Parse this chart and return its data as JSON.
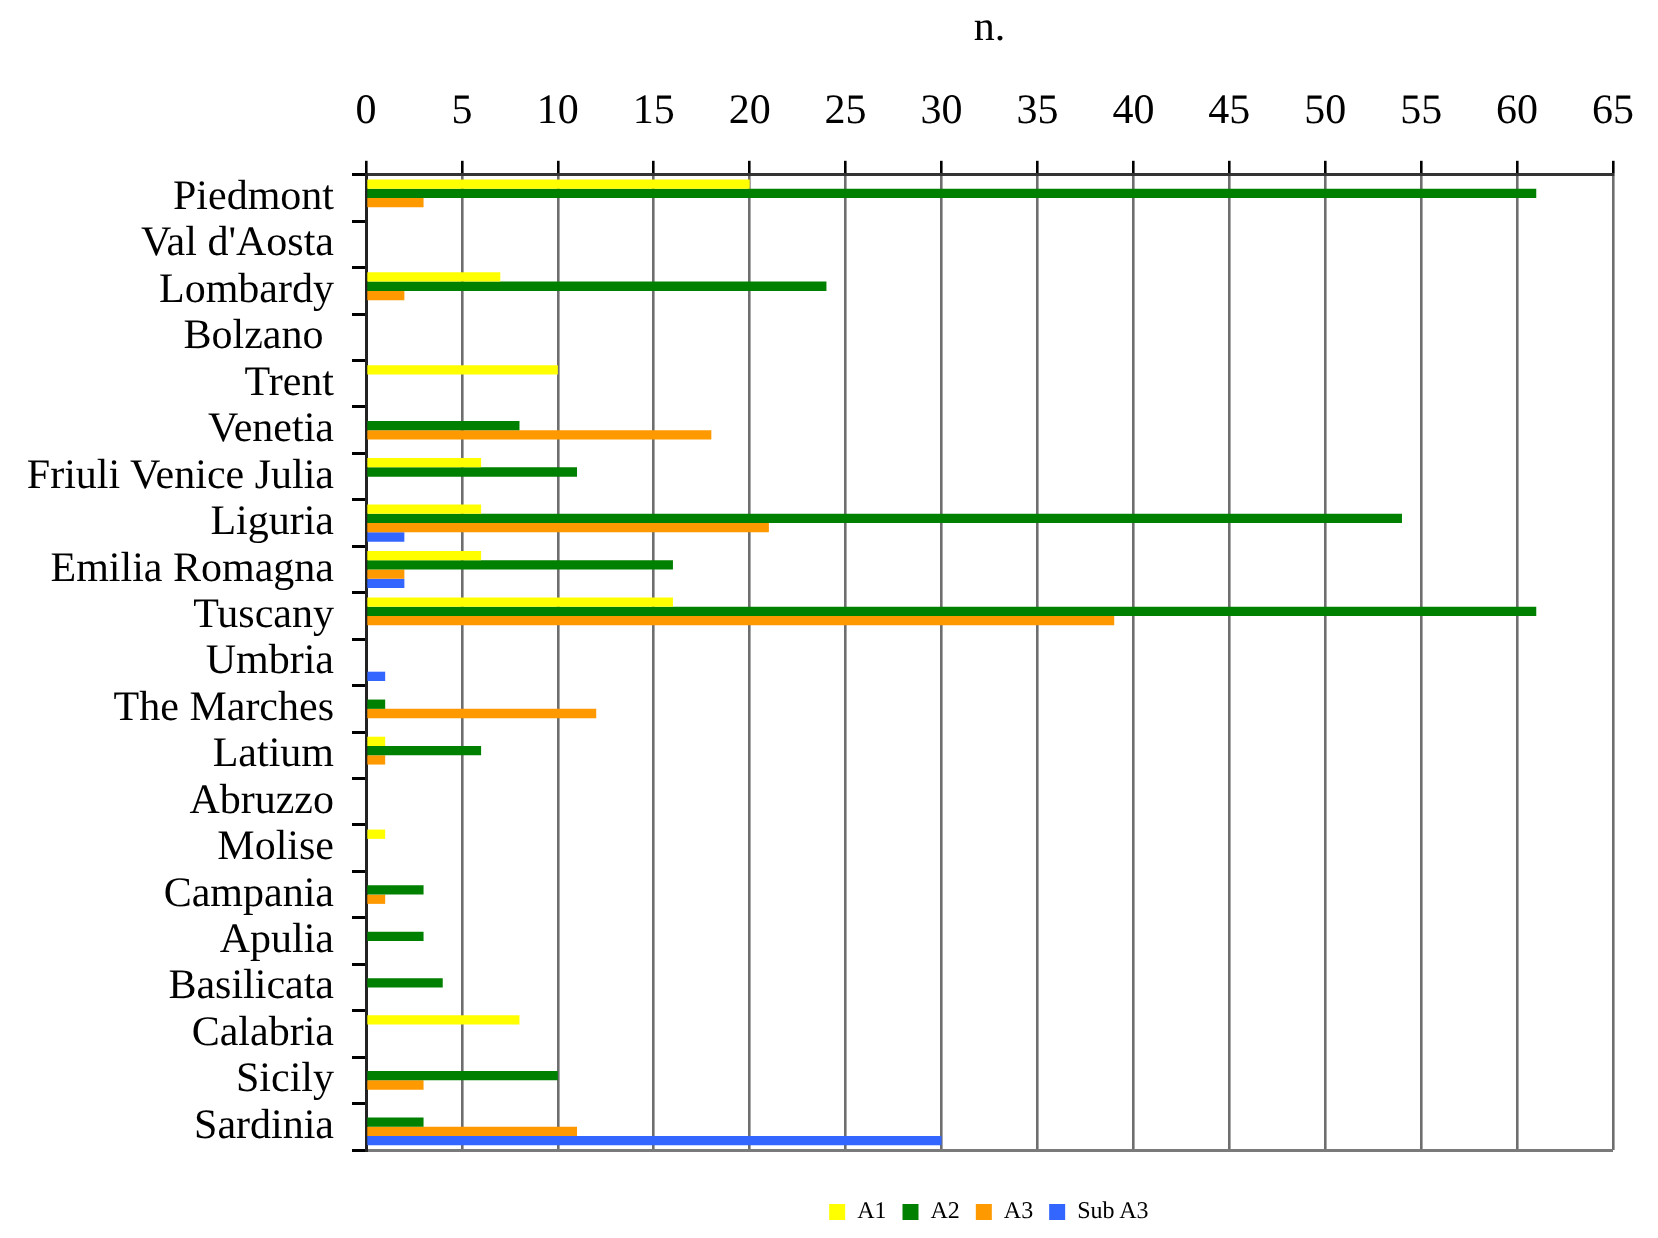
{
  "chart_data": {
    "type": "bar",
    "orientation": "horizontal",
    "xlabel": "n.",
    "categories": [
      "Piedmont",
      "Val d'Aosta",
      "Lombardy",
      "Bolzano ",
      "Trent",
      "Venetia",
      "Friuli Venice Julia",
      "Liguria",
      "Emilia Romagna",
      "Tuscany",
      "Umbria",
      "The Marches",
      "Latium",
      "Abruzzo",
      "Molise",
      "Campania",
      "Apulia",
      "Basilicata",
      "Calabria",
      "Sicily",
      "Sardinia"
    ],
    "series": [
      {
        "name": "A1",
        "color": "#ffff00",
        "values": [
          20,
          null,
          7,
          null,
          10,
          null,
          6,
          6,
          6,
          16,
          null,
          null,
          1,
          null,
          1,
          null,
          null,
          null,
          8,
          null,
          null
        ]
      },
      {
        "name": "A2",
        "color": "#008000",
        "values": [
          61,
          null,
          24,
          null,
          null,
          8,
          11,
          54,
          16,
          61,
          null,
          1,
          6,
          null,
          null,
          3,
          3,
          4,
          null,
          10,
          3
        ]
      },
      {
        "name": "A3",
        "color": "#ff9900",
        "values": [
          3,
          null,
          2,
          null,
          null,
          18,
          null,
          21,
          2,
          39,
          null,
          12,
          1,
          null,
          null,
          1,
          null,
          null,
          null,
          3,
          11
        ]
      },
      {
        "name": "Sub A3",
        "color": "#3366ff",
        "values": [
          null,
          null,
          null,
          null,
          null,
          null,
          null,
          2,
          2,
          null,
          1,
          null,
          null,
          null,
          null,
          null,
          null,
          null,
          null,
          null,
          30
        ]
      }
    ],
    "xlim": [
      0,
      65
    ],
    "xticks": [
      0,
      5,
      10,
      15,
      20,
      25,
      30,
      35,
      40,
      45,
      50,
      55,
      60,
      65
    ],
    "grid": "x",
    "legend": "bottom"
  }
}
